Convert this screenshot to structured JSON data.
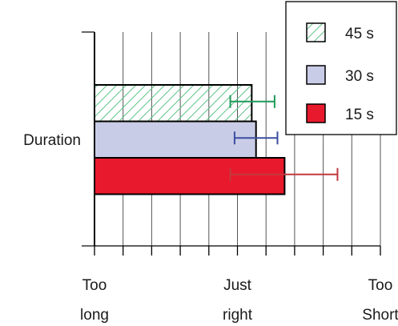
{
  "chart_data": {
    "type": "bar",
    "orientation": "horizontal",
    "category": "Duration",
    "xlim": [
      0,
      10
    ],
    "grid": true,
    "legend_position": "top-right",
    "x_tick_labels": [
      {
        "value": 0,
        "lines": [
          "Too",
          "long"
        ]
      },
      {
        "value": 5,
        "lines": [
          "Just",
          "right"
        ]
      },
      {
        "value": 10,
        "lines": [
          "Too",
          "Short"
        ]
      }
    ],
    "series": [
      {
        "name": "45 s",
        "value": 5.5,
        "error_low": 4.75,
        "error_high": 6.3,
        "fill": "hatch",
        "color": "#5fc48b",
        "error_color": "#1f9a5a"
      },
      {
        "name": "30 s",
        "value": 5.65,
        "error_low": 4.9,
        "error_high": 6.4,
        "fill": "#c9cce6",
        "color": "#c9cce6",
        "error_color": "#3b4ea0"
      },
      {
        "name": "15 s",
        "value": 6.65,
        "error_low": 4.75,
        "error_high": 8.5,
        "fill": "#e8192c",
        "color": "#e8192c",
        "error_color": "#c23a3f"
      }
    ]
  }
}
